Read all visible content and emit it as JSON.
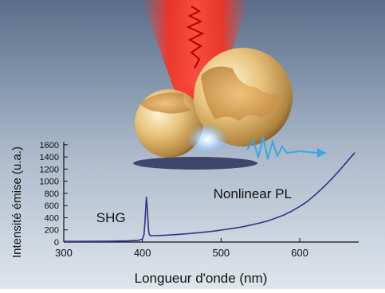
{
  "chart_data": {
    "type": "line",
    "xlabel": "Longueur d'onde (nm)",
    "ylabel": "Intensité émise (u.a.)",
    "xlim": [
      300,
      675
    ],
    "ylim": [
      0,
      1650
    ],
    "xticks": [
      300,
      400,
      500,
      600
    ],
    "yticks": [
      0,
      200,
      400,
      600,
      800,
      1000,
      1200,
      1400,
      1600
    ],
    "grid": false,
    "line_color": "#33338a",
    "annotations": [
      {
        "text": "SHG",
        "x": 360,
        "y": 330
      },
      {
        "text": "Nonlinear PL",
        "x": 540,
        "y": 720
      }
    ],
    "series": [
      {
        "x": [
          300,
          320,
          340,
          360,
          380,
          395,
          400,
          402,
          403,
          404,
          405,
          406,
          407,
          408,
          409,
          410,
          412,
          415,
          420,
          430,
          440,
          450,
          460,
          470,
          480,
          490,
          500,
          510,
          520,
          530,
          540,
          550,
          560,
          570,
          580,
          590,
          600,
          610,
          620,
          630,
          640,
          650,
          660,
          670
        ],
        "y": [
          10,
          10,
          12,
          14,
          18,
          28,
          50,
          120,
          280,
          500,
          740,
          600,
          360,
          170,
          120,
          110,
          106,
          105,
          107,
          112,
          120,
          130,
          140,
          152,
          165,
          180,
          197,
          215,
          235,
          258,
          285,
          315,
          350,
          395,
          445,
          510,
          585,
          670,
          780,
          900,
          1030,
          1170,
          1320,
          1470
        ]
      }
    ]
  }
}
